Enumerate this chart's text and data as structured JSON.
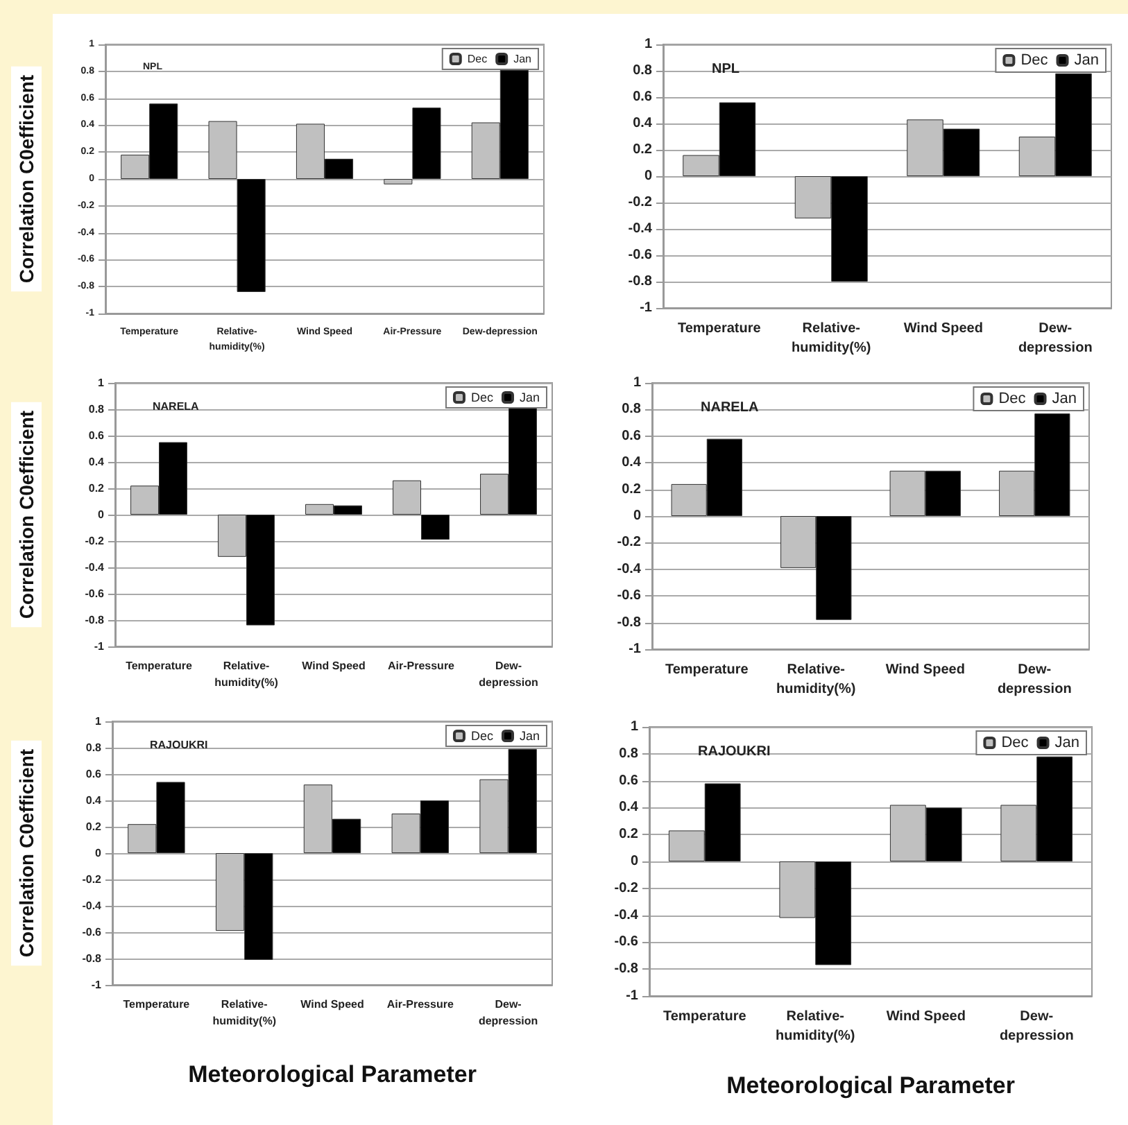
{
  "chart_data": [
    {
      "type": "bar",
      "title": "NPL",
      "ylabel": "Correlation C0efficient",
      "categories": [
        "Temperature",
        "Relative-\nhumidity(%)",
        "Wind Speed",
        "Air-Pressure",
        "Dew-depression"
      ],
      "series": [
        {
          "name": "Dec",
          "color": "#c0c0c0",
          "values": [
            0.18,
            0.43,
            0.41,
            -0.04,
            0.42
          ]
        },
        {
          "name": "Jan",
          "color": "#000000",
          "values": [
            0.56,
            -0.84,
            0.15,
            0.53,
            0.81
          ]
        }
      ],
      "ylim": [
        -1,
        1
      ],
      "yticks": [
        -1,
        -0.8,
        -0.6,
        -0.4,
        -0.2,
        0,
        0.2,
        0.4,
        0.6,
        0.8,
        1
      ],
      "grid": "y",
      "legend": "top right"
    },
    {
      "type": "bar",
      "title": "NPL",
      "categories": [
        "Temperature",
        "Relative-\nhumidity(%)",
        "Wind Speed",
        "Dew-\ndepression"
      ],
      "series": [
        {
          "name": "Dec",
          "color": "#c0c0c0",
          "values": [
            0.16,
            -0.32,
            0.43,
            0.3
          ]
        },
        {
          "name": "Jan",
          "color": "#000000",
          "values": [
            0.56,
            -0.8,
            0.36,
            0.78
          ]
        }
      ],
      "ylim": [
        -1,
        1
      ],
      "yticks": [
        -1,
        -0.8,
        -0.6,
        -0.4,
        -0.2,
        0,
        0.2,
        0.4,
        0.6,
        0.8,
        1
      ],
      "grid": "y",
      "legend": "top right"
    },
    {
      "type": "bar",
      "title": "NARELA",
      "ylabel": "Correlation C0efficient",
      "categories": [
        "Temperature",
        "Relative-\nhumidity(%)",
        "Wind Speed",
        "Air-Pressure",
        "Dew-\ndepression"
      ],
      "series": [
        {
          "name": "Dec",
          "color": "#c0c0c0",
          "values": [
            0.22,
            -0.32,
            0.08,
            0.26,
            0.31
          ]
        },
        {
          "name": "Jan",
          "color": "#000000",
          "values": [
            0.55,
            -0.84,
            0.07,
            -0.19,
            0.82
          ]
        }
      ],
      "ylim": [
        -1,
        1
      ],
      "yticks": [
        -1,
        -0.8,
        -0.6,
        -0.4,
        -0.2,
        0,
        0.2,
        0.4,
        0.6,
        0.8,
        1
      ],
      "grid": "y",
      "legend": "top right"
    },
    {
      "type": "bar",
      "title": "NARELA",
      "categories": [
        "Temperature",
        "Relative-\nhumidity(%)",
        "Wind Speed",
        "Dew-\ndepression"
      ],
      "series": [
        {
          "name": "Dec",
          "color": "#c0c0c0",
          "values": [
            0.24,
            -0.39,
            0.34,
            0.34
          ]
        },
        {
          "name": "Jan",
          "color": "#000000",
          "values": [
            0.58,
            -0.78,
            0.34,
            0.77
          ]
        }
      ],
      "ylim": [
        -1,
        1
      ],
      "yticks": [
        -1,
        -0.8,
        -0.6,
        -0.4,
        -0.2,
        0,
        0.2,
        0.4,
        0.6,
        0.8,
        1
      ],
      "grid": "y",
      "legend": "top right"
    },
    {
      "type": "bar",
      "title": "RAJOUKRI",
      "ylabel": "Correlation C0efficient",
      "xlabel": "Meteorological Parameter",
      "categories": [
        "Temperature",
        "Relative-\nhumidity(%)",
        "Wind Speed",
        "Air-Pressure",
        "Dew-\ndepression"
      ],
      "series": [
        {
          "name": "Dec",
          "color": "#c0c0c0",
          "values": [
            0.22,
            -0.59,
            0.52,
            0.3,
            0.56
          ]
        },
        {
          "name": "Jan",
          "color": "#000000",
          "values": [
            0.54,
            -0.81,
            0.26,
            0.4,
            0.79
          ]
        }
      ],
      "ylim": [
        -1,
        1
      ],
      "yticks": [
        -1,
        -0.8,
        -0.6,
        -0.4,
        -0.2,
        0,
        0.2,
        0.4,
        0.6,
        0.8,
        1
      ],
      "grid": "y",
      "legend": "top right"
    },
    {
      "type": "bar",
      "title": "RAJOUKRI",
      "xlabel": "Meteorological Parameter",
      "categories": [
        "Temperature",
        "Relative-\nhumidity(%)",
        "Wind Speed",
        "Dew-\ndepression"
      ],
      "series": [
        {
          "name": "Dec",
          "color": "#c0c0c0",
          "values": [
            0.23,
            -0.42,
            0.42,
            0.42
          ]
        },
        {
          "name": "Jan",
          "color": "#000000",
          "values": [
            0.58,
            -0.77,
            0.4,
            0.78
          ]
        }
      ],
      "ylim": [
        -1,
        1
      ],
      "yticks": [
        -1,
        -0.8,
        -0.6,
        -0.4,
        -0.2,
        0,
        0.2,
        0.4,
        0.6,
        0.8,
        1
      ],
      "grid": "y",
      "legend": "top right"
    }
  ]
}
